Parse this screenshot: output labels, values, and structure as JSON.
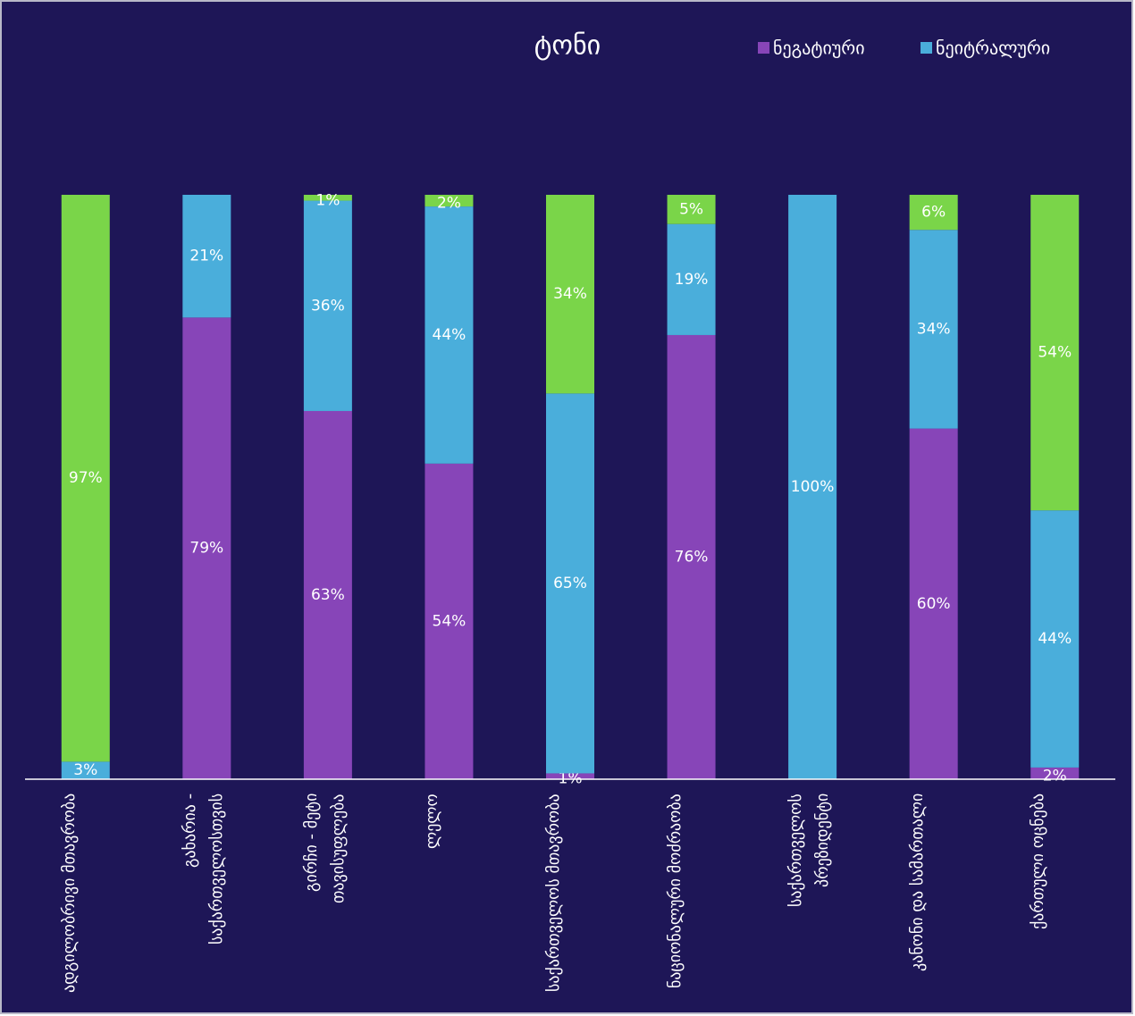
{
  "chart_data": {
    "type": "stacked_bar",
    "title": "ტონი",
    "categories": [
      "ადგილობრივი მთავრობა",
      "გახარია - საქართველოსთვის",
      "გირჩი - მეტი თავისუფლება",
      "ლელო",
      "საქართველოს მთავრობა",
      "ნაციონალური მოძრაობა",
      "საქართველოს პრეზიდენტი",
      "კანონი და სამართალი",
      "ქართული ოცნება"
    ],
    "series": [
      {
        "name": "ნეგატიური",
        "color": "#8745b8",
        "values": [
          null,
          79,
          63,
          54,
          1,
          76,
          null,
          60,
          2
        ],
        "value_labels": [
          null,
          "79%",
          "63%",
          "54%",
          "1%",
          "76%",
          null,
          "60%",
          "2%"
        ]
      },
      {
        "name": "ნეიტრალური",
        "color": "#4aaedb",
        "values": [
          3,
          21,
          36,
          44,
          65,
          19,
          100,
          34,
          44
        ],
        "value_labels": [
          "3%",
          "21%",
          "36%",
          "44%",
          "65%",
          "19%",
          "100%",
          "34%",
          "44%"
        ]
      },
      {
        "color": "#7ad549",
        "values": [
          97,
          null,
          1,
          2,
          34,
          5,
          null,
          6,
          54
        ],
        "value_labels": [
          "97%",
          null,
          "1%",
          "2%",
          "34%",
          "5%",
          null,
          "6%",
          "54%"
        ]
      }
    ],
    "ylim": [
      0,
      100
    ]
  }
}
